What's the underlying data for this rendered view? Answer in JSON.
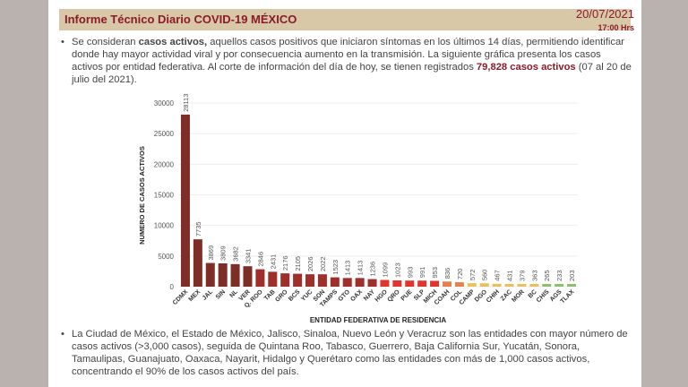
{
  "header": {
    "title": "Informe Técnico Diario COVID-19 MÉXICO",
    "date": "20/07/2021",
    "time": "17:00 Hrs"
  },
  "intro": {
    "p1": "Se consideran ",
    "b1": "casos activos,",
    "p2": " aquellos casos positivos que iniciaron síntomas en los últimos 14 días, permitiendo identificar donde hay mayor actividad viral y por consecuencia aumento en la transmisión. La siguiente gráfica presenta los casos activos por entidad federativa. Al corte de información del día de hoy, se tienen registrados ",
    "b2": "79,828 casos activos",
    "p3": " (07 al 20 de julio del 2021)."
  },
  "footer": {
    "text": "La Ciudad de México, el Estado de México, Jalisco, Sinaloa, Nuevo León y Veracruz son las entidades con mayor número de casos activos (>3,000 casos), seguida de Quintana Roo, Tabasco, Guerrero, Baja California Sur, Yucatán, Sonora, Tamaulipas, Guanajuato, Oaxaca, Nayarit, Hidalgo y Querétaro como las entidades con más de 1,000 casos activos, concentrando el 90% de los casos activos del país."
  },
  "chart_data": {
    "type": "bar",
    "xlabel": "ENTIDAD FEDERATIVA DE RESIDENCIA",
    "ylabel": "NUMERO DE CASOS ACTIVOS",
    "ylim": [
      0,
      30000
    ],
    "yticks": [
      0,
      5000,
      10000,
      15000,
      20000,
      25000,
      30000
    ],
    "categories": [
      "CDMX",
      "MEX",
      "JAL",
      "SIN",
      "NL",
      "VER",
      "Q. ROO",
      "TAB",
      "GRO",
      "BCS",
      "YUC",
      "SON",
      "TAMPS",
      "GTO",
      "OAX",
      "NAY",
      "HGO",
      "QRO",
      "PUE",
      "SLP",
      "MICH",
      "COAH",
      "COL",
      "CAMP",
      "DGO",
      "CHIH",
      "ZAC",
      "MOR",
      "BC",
      "CHIS",
      "AGS",
      "TLAX"
    ],
    "values": [
      28113,
      7735,
      3869,
      3809,
      3682,
      3341,
      2846,
      2431,
      2176,
      2105,
      2026,
      2022,
      1523,
      1413,
      1413,
      1236,
      1099,
      1023,
      993,
      991,
      953,
      836,
      720,
      572,
      560,
      467,
      431,
      379,
      363,
      265,
      233,
      203
    ],
    "colors": {
      "high": "#7e2e27",
      "mid": "#a02f2c",
      "red": "#e0352c",
      "orange": "#e5804d",
      "yellow": "#e8c15c",
      "green": "#8cc06a"
    }
  }
}
